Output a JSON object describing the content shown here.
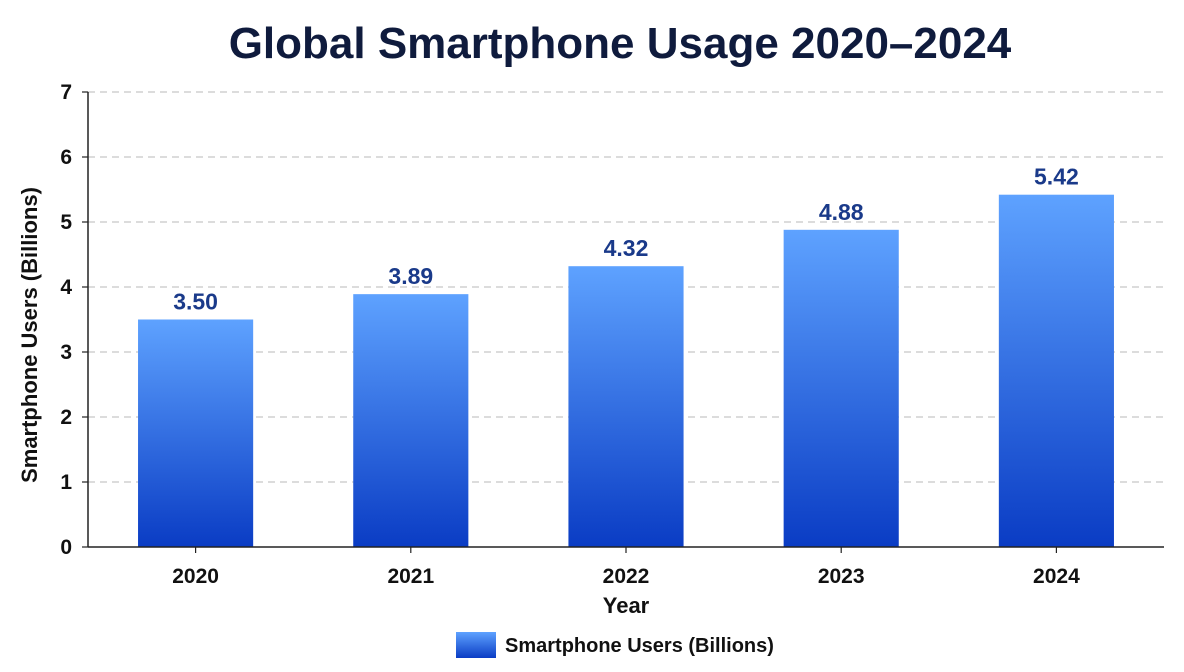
{
  "chart_data": {
    "type": "bar",
    "title": "Global Smartphone Usage 2020–2024",
    "xlabel": "Year",
    "ylabel": "Smartphone Users (Billions)",
    "categories": [
      "2020",
      "2021",
      "2022",
      "2023",
      "2024"
    ],
    "series": [
      {
        "name": "Smartphone Users (Billions)",
        "values": [
          3.5,
          3.89,
          4.32,
          4.88,
          5.42
        ]
      }
    ],
    "data_labels": [
      "3.50",
      "3.89",
      "4.32",
      "4.88",
      "5.42"
    ],
    "y_ticks": [
      "0",
      "1",
      "2",
      "3",
      "4",
      "5",
      "6",
      "7"
    ],
    "ylim": [
      0,
      7
    ],
    "grid": true,
    "legend": "bottom-center",
    "colors": {
      "bar_top": "#5ea2ff",
      "bar_bottom": "#0a3cc4",
      "label": "#1a3a8a",
      "title": "#0f1b3d"
    }
  }
}
